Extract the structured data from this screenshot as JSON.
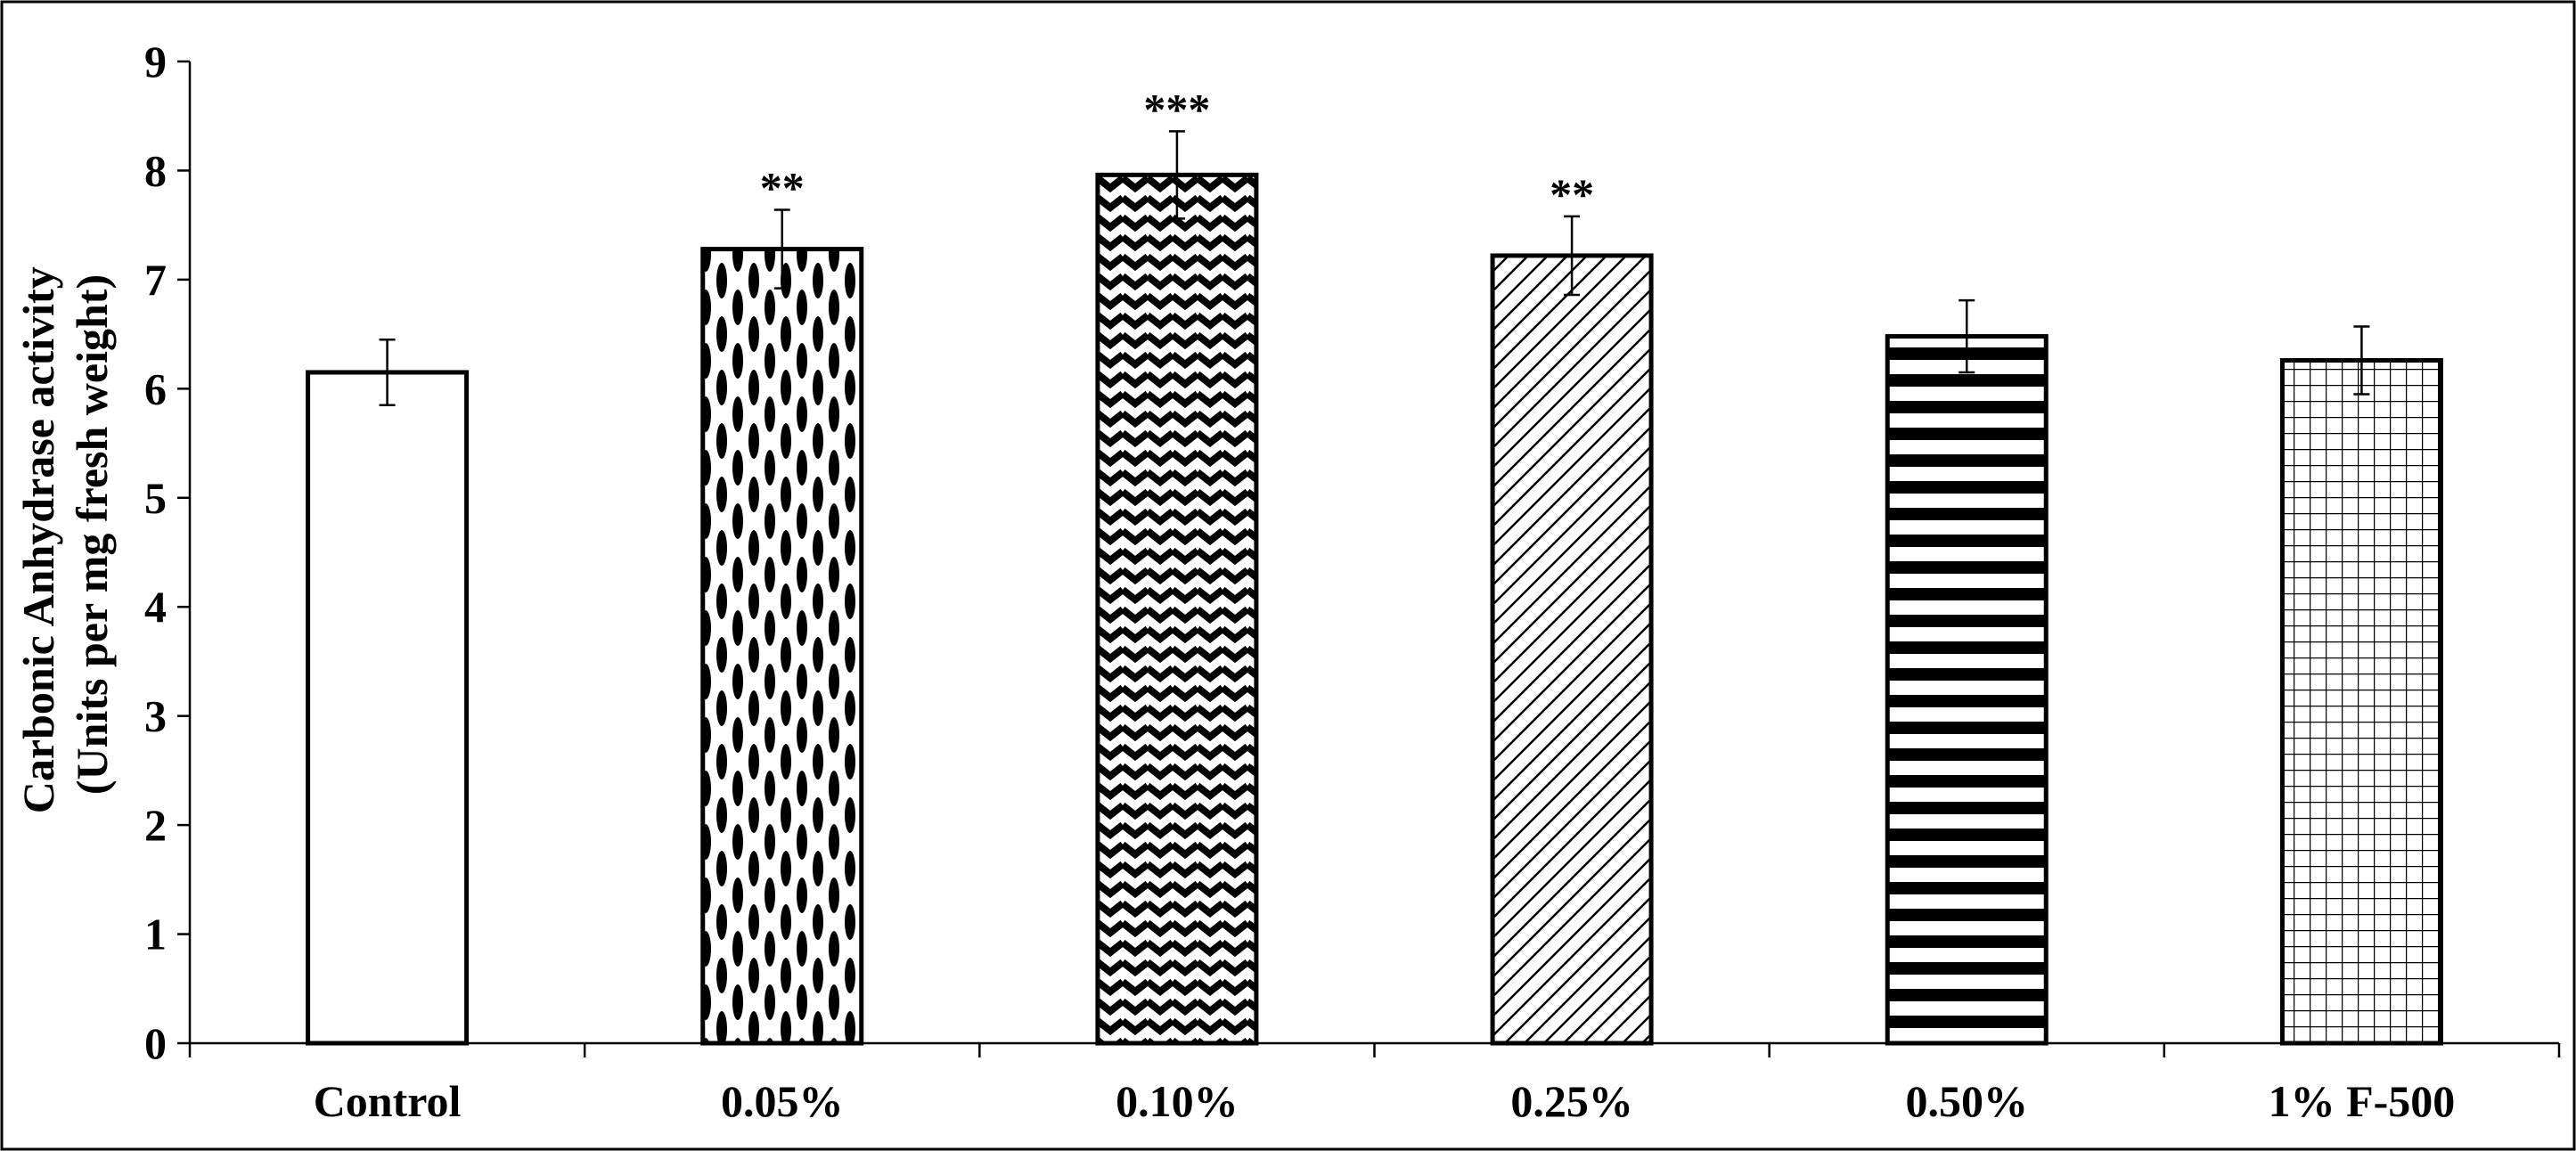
{
  "chart_data": {
    "type": "bar",
    "categories": [
      "Control",
      "0.05%",
      "0.10%",
      "0.25%",
      "0.50%",
      "1% F-500"
    ],
    "values": [
      6.15,
      7.28,
      7.96,
      7.22,
      6.48,
      6.26
    ],
    "errors": [
      0.3,
      0.36,
      0.4,
      0.36,
      0.33,
      0.31
    ],
    "significance": [
      "",
      "**",
      "***",
      "**",
      "",
      ""
    ],
    "patterns": [
      "solid-white",
      "ellipses",
      "zigzag",
      "diagonal-lines",
      "horizontal-stripes",
      "grid"
    ],
    "ylabel_line1": "Carbonic Anhydrase activity",
    "ylabel_line2": "(Units per mg fresh weight)",
    "xlabel": "",
    "title": "",
    "ylim": [
      0,
      9
    ],
    "yticks": [
      "0",
      "1",
      "2",
      "3",
      "4",
      "5",
      "6",
      "7",
      "8",
      "9"
    ],
    "grid": false,
    "legend": "none"
  }
}
